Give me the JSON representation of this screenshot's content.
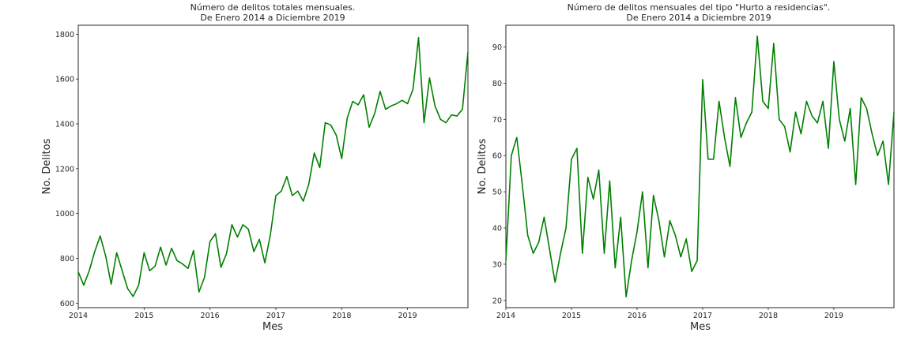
{
  "chart_data": [
    {
      "type": "line",
      "title": "Número de delitos totales mensuales.",
      "subtitle": "De Enero 2014 a Diciembre 2019",
      "xlabel": "Mes",
      "ylabel": "No. Delitos",
      "xlim": [
        "2014-01",
        "2019-12"
      ],
      "ylim": [
        580,
        1840
      ],
      "yticks": [
        600,
        800,
        1000,
        1200,
        1400,
        1600,
        1800
      ],
      "xtick_labels": [
        "2014",
        "2015",
        "2016",
        "2017",
        "2018",
        "2019"
      ],
      "grid": false,
      "line_color": "#008000",
      "x": [
        "2014-01",
        "2014-02",
        "2014-03",
        "2014-04",
        "2014-05",
        "2014-06",
        "2014-07",
        "2014-08",
        "2014-09",
        "2014-10",
        "2014-11",
        "2014-12",
        "2015-01",
        "2015-02",
        "2015-03",
        "2015-04",
        "2015-05",
        "2015-06",
        "2015-07",
        "2015-08",
        "2015-09",
        "2015-10",
        "2015-11",
        "2015-12",
        "2016-01",
        "2016-02",
        "2016-03",
        "2016-04",
        "2016-05",
        "2016-06",
        "2016-07",
        "2016-08",
        "2016-09",
        "2016-10",
        "2016-11",
        "2016-12",
        "2017-01",
        "2017-02",
        "2017-03",
        "2017-04",
        "2017-05",
        "2017-06",
        "2017-07",
        "2017-08",
        "2017-09",
        "2017-10",
        "2017-11",
        "2017-12",
        "2018-01",
        "2018-02",
        "2018-03",
        "2018-04",
        "2018-05",
        "2018-06",
        "2018-07",
        "2018-08",
        "2018-09",
        "2018-10",
        "2018-11",
        "2018-12",
        "2019-01",
        "2019-02",
        "2019-03",
        "2019-04",
        "2019-05",
        "2019-06",
        "2019-07",
        "2019-08",
        "2019-09",
        "2019-10",
        "2019-11",
        "2019-12"
      ],
      "series": [
        {
          "values": [
            740,
            680,
            745,
            830,
            900,
            810,
            685,
            825,
            745,
            665,
            630,
            680,
            825,
            745,
            765,
            850,
            770,
            845,
            790,
            775,
            755,
            835,
            650,
            715,
            875,
            910,
            760,
            820,
            950,
            895,
            950,
            930,
            830,
            885,
            780,
            905,
            1080,
            1100,
            1165,
            1080,
            1100,
            1055,
            1130,
            1270,
            1205,
            1405,
            1395,
            1350,
            1245,
            1425,
            1500,
            1485,
            1530,
            1385,
            1445,
            1545,
            1465,
            1480,
            1490,
            1505,
            1490,
            1555,
            1785,
            1405,
            1605,
            1480,
            1420,
            1405,
            1440,
            1435,
            1465,
            1720
          ]
        }
      ]
    },
    {
      "type": "line",
      "title": "Número de delitos mensuales del tipo \"Hurto a residencias\".",
      "subtitle": "De Enero 2014 a Diciembre 2019",
      "xlabel": "Mes",
      "ylabel": "No. Delitos",
      "xlim": [
        "2014-01",
        "2019-12"
      ],
      "ylim": [
        18,
        96
      ],
      "yticks": [
        20,
        30,
        40,
        50,
        60,
        70,
        80,
        90
      ],
      "xtick_labels": [
        "2014",
        "2015",
        "2016",
        "2017",
        "2018",
        "2019"
      ],
      "grid": false,
      "line_color": "#008000",
      "x": [
        "2014-01",
        "2014-02",
        "2014-03",
        "2014-04",
        "2014-05",
        "2014-06",
        "2014-07",
        "2014-08",
        "2014-09",
        "2014-10",
        "2014-11",
        "2014-12",
        "2015-01",
        "2015-02",
        "2015-03",
        "2015-04",
        "2015-05",
        "2015-06",
        "2015-07",
        "2015-08",
        "2015-09",
        "2015-10",
        "2015-11",
        "2015-12",
        "2016-01",
        "2016-02",
        "2016-03",
        "2016-04",
        "2016-05",
        "2016-06",
        "2016-07",
        "2016-08",
        "2016-09",
        "2016-10",
        "2016-11",
        "2016-12",
        "2017-01",
        "2017-02",
        "2017-03",
        "2017-04",
        "2017-05",
        "2017-06",
        "2017-07",
        "2017-08",
        "2017-09",
        "2017-10",
        "2017-11",
        "2017-12",
        "2018-01",
        "2018-02",
        "2018-03",
        "2018-04",
        "2018-05",
        "2018-06",
        "2018-07",
        "2018-08",
        "2018-09",
        "2018-10",
        "2018-11",
        "2018-12",
        "2019-01",
        "2019-02",
        "2019-03",
        "2019-04",
        "2019-05",
        "2019-06",
        "2019-07",
        "2019-08",
        "2019-09",
        "2019-10",
        "2019-11",
        "2019-12"
      ],
      "series": [
        {
          "values": [
            31,
            60,
            65,
            52,
            38,
            33,
            36,
            43,
            34,
            25,
            33,
            40,
            59,
            62,
            33,
            54,
            48,
            56,
            33,
            53,
            29,
            43,
            21,
            31,
            39,
            50,
            29,
            49,
            42,
            32,
            42,
            38,
            32,
            37,
            28,
            31,
            81,
            59,
            59,
            75,
            65,
            57,
            76,
            65,
            69,
            72,
            93,
            75,
            73,
            91,
            70,
            68,
            61,
            72,
            66,
            75,
            71,
            69,
            75,
            62,
            86,
            70,
            64,
            73,
            52,
            76,
            73,
            66,
            60,
            64,
            52,
            72
          ]
        }
      ]
    }
  ]
}
